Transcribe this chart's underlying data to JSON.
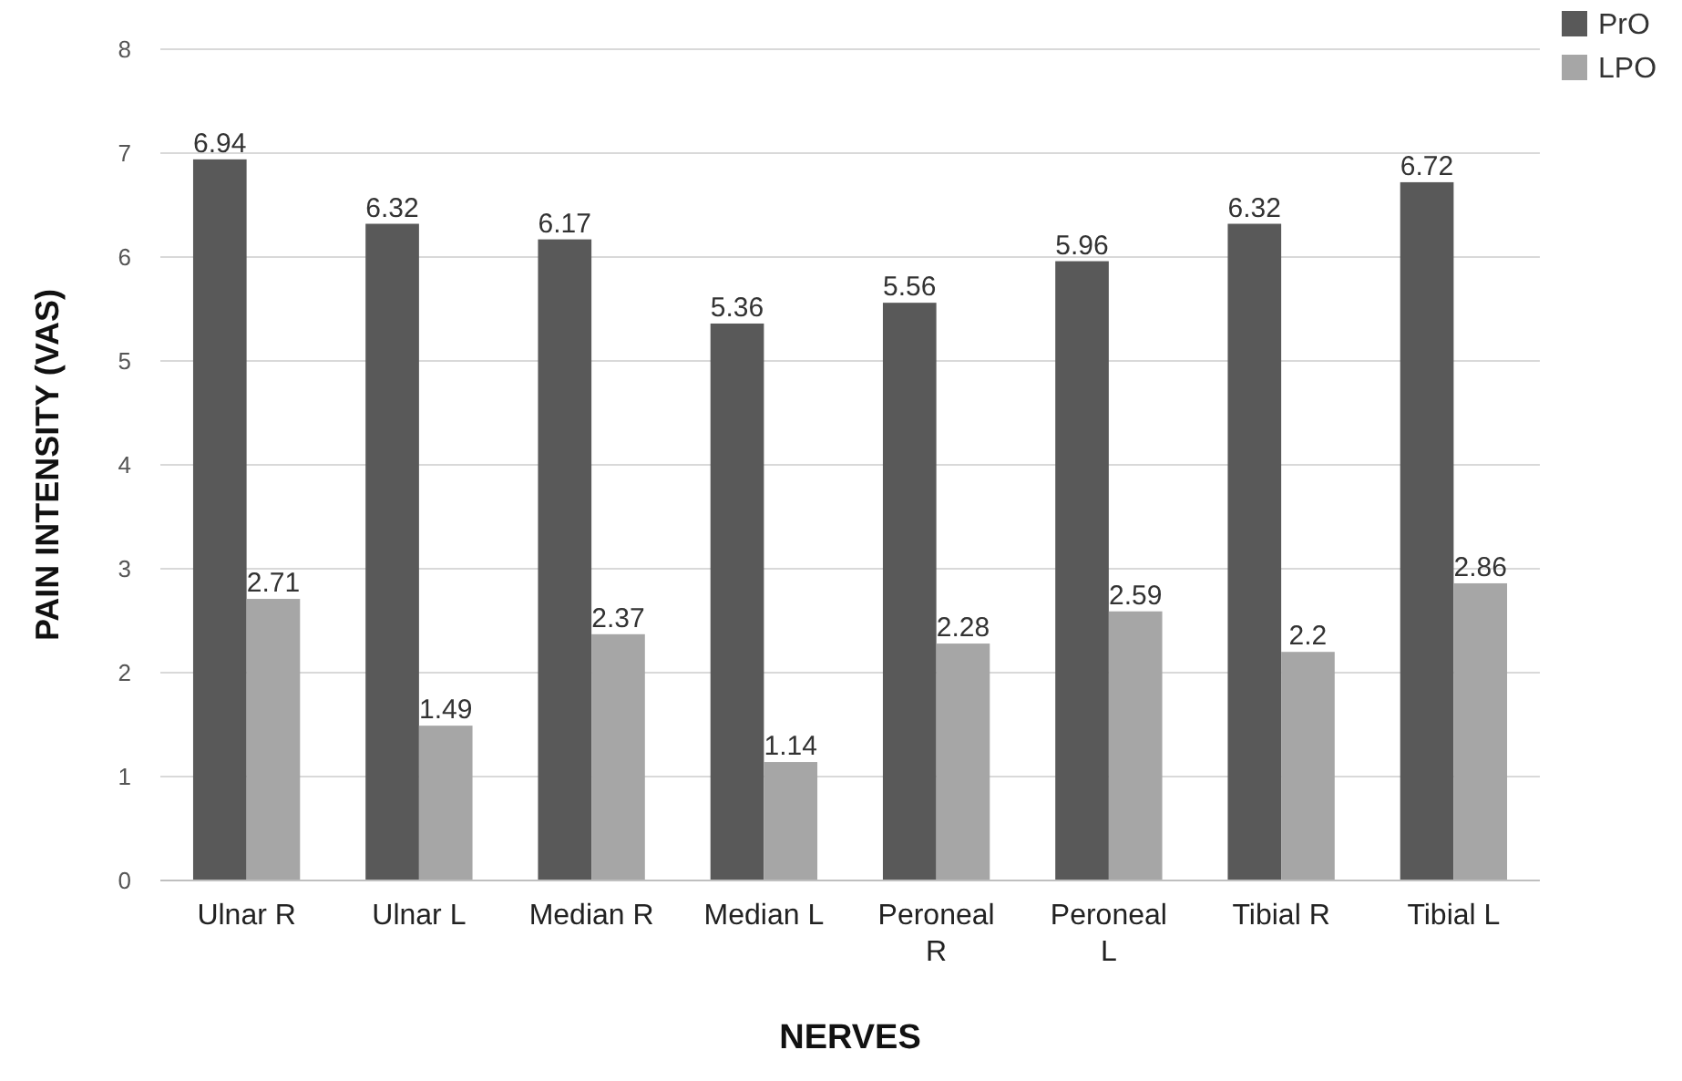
{
  "chart_data": {
    "type": "bar",
    "xlabel": "NERVES",
    "ylabel": "PAIN INTENSITY (VAS)",
    "categories": [
      "Ulnar R",
      "Ulnar L",
      "Median R",
      "Median L",
      "Peroneal R",
      "Peroneal L",
      "Tibial R",
      "Tibial L"
    ],
    "series": [
      {
        "name": "PrO",
        "color": "#595959",
        "values": [
          6.94,
          6.32,
          6.17,
          5.36,
          5.56,
          5.96,
          6.32,
          6.72
        ]
      },
      {
        "name": "LPO",
        "color": "#a6a6a6",
        "values": [
          2.71,
          1.49,
          2.37,
          1.14,
          2.28,
          2.59,
          2.2,
          2.86
        ]
      }
    ],
    "ylim": [
      0,
      8
    ],
    "yticks": [
      0,
      1,
      2,
      3,
      4,
      5,
      6,
      7,
      8
    ],
    "grid": "y",
    "legend": "top right",
    "data_labels": true
  }
}
